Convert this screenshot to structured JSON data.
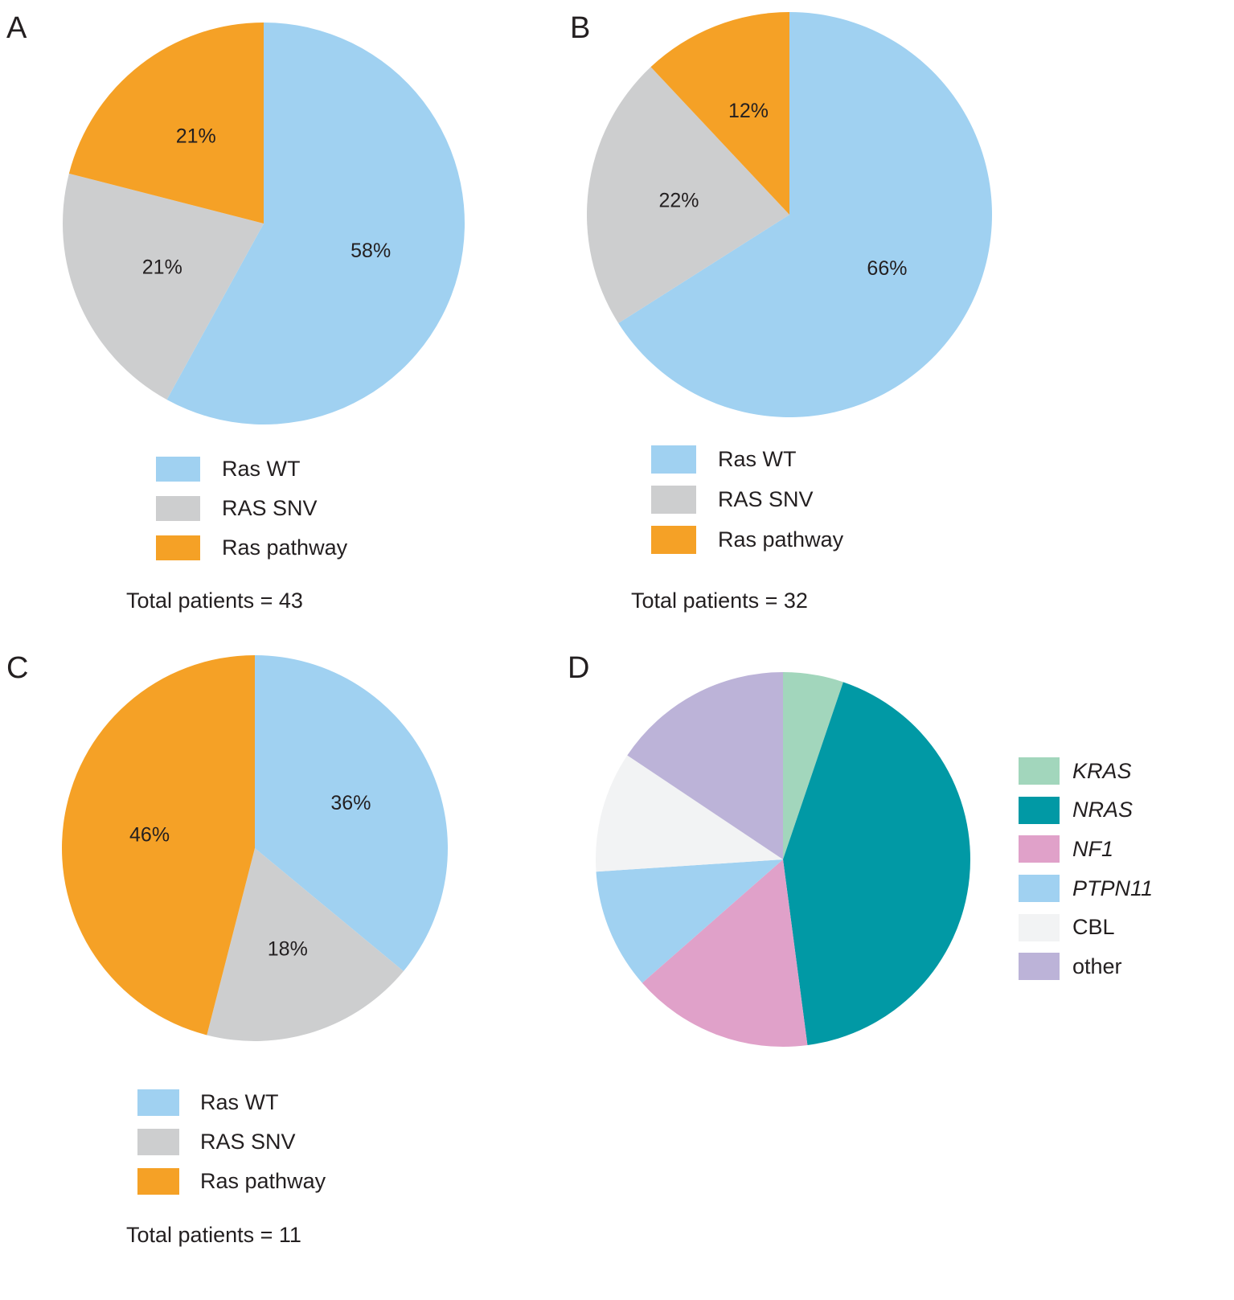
{
  "chart_data": [
    {
      "panel": "A",
      "type": "pie",
      "slices": [
        {
          "label": "Ras WT",
          "value": 58,
          "display": "58%",
          "color": "#a0d1f1"
        },
        {
          "label": "RAS SNV",
          "value": 21,
          "display": "21%",
          "color": "#cdcecf"
        },
        {
          "label": "Ras pathway",
          "value": 21,
          "display": "21%",
          "color": "#f5a126"
        }
      ],
      "legend": [
        "Ras WT",
        "RAS SNV",
        "Ras pathway"
      ],
      "total_text": "Total patients = 43"
    },
    {
      "panel": "B",
      "type": "pie",
      "slices": [
        {
          "label": "Ras WT",
          "value": 66,
          "display": "66%",
          "color": "#a0d1f1"
        },
        {
          "label": "RAS SNV",
          "value": 22,
          "display": "22%",
          "color": "#cdcecf"
        },
        {
          "label": "Ras pathway",
          "value": 12,
          "display": "12%",
          "color": "#f5a126"
        }
      ],
      "legend": [
        "Ras WT",
        "RAS SNV",
        "Ras pathway"
      ],
      "total_text": "Total patients = 32"
    },
    {
      "panel": "C",
      "type": "pie",
      "slices": [
        {
          "label": "Ras WT",
          "value": 36,
          "display": "36%",
          "color": "#a0d1f1"
        },
        {
          "label": "RAS SNV",
          "value": 18,
          "display": "18%",
          "color": "#cdcecf"
        },
        {
          "label": "Ras pathway",
          "value": 46,
          "display": "46%",
          "color": "#f5a126"
        }
      ],
      "legend": [
        "Ras WT",
        "RAS SNV",
        "Ras pathway"
      ],
      "total_text": "Total patients = 11"
    },
    {
      "panel": "D",
      "type": "pie",
      "slices": [
        {
          "label": "KRAS",
          "value": 5,
          "color": "#a2d6bc"
        },
        {
          "label": "NRAS",
          "value": 41,
          "color": "#0199a5"
        },
        {
          "label": "NF1",
          "value": 15,
          "color": "#e0a1c9"
        },
        {
          "label": "PTPN11",
          "value": 10,
          "color": "#a0d1f1"
        },
        {
          "label": "CBL",
          "value": 10,
          "color": "#f2f3f4"
        },
        {
          "label": "other",
          "value": 15,
          "color": "#bcb3d8"
        }
      ],
      "legend": [
        "KRAS",
        "NRAS",
        "NF1",
        "PTPN11",
        "CBL",
        "other"
      ],
      "legend_italic": [
        true,
        true,
        true,
        true,
        false,
        false
      ]
    }
  ]
}
